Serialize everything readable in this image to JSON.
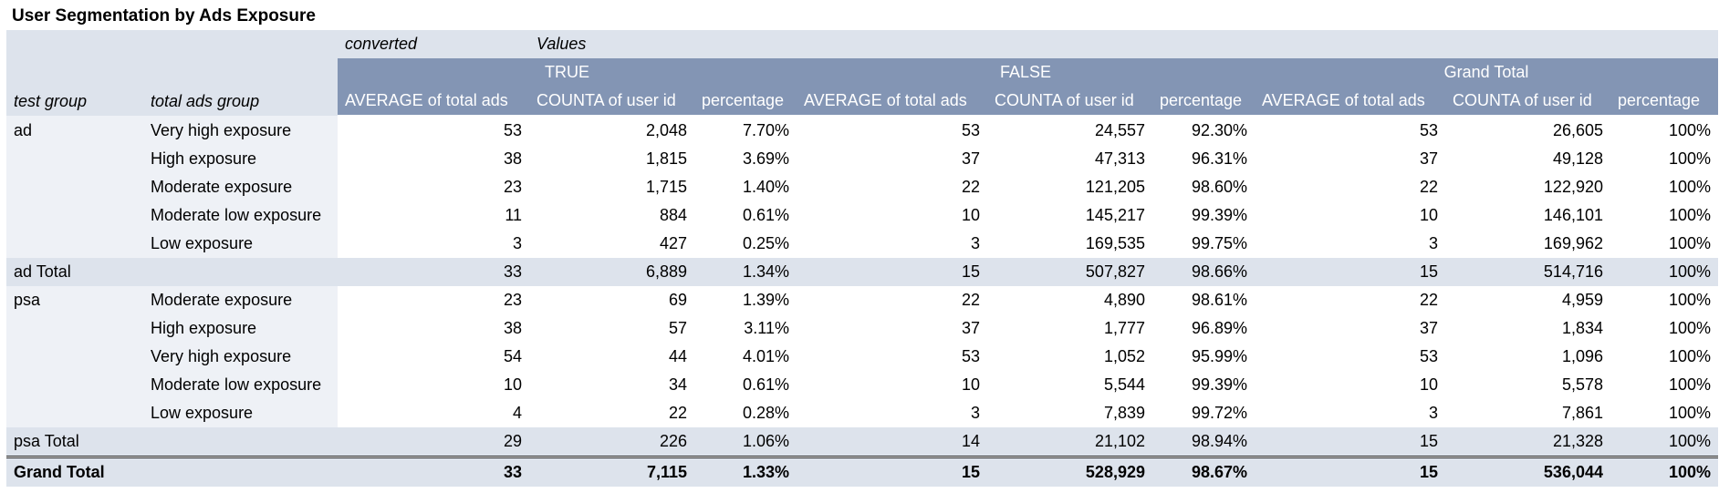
{
  "title": "User Segmentation by Ads Exposure",
  "pivot": {
    "col_field": "converted",
    "values_label": "Values",
    "row_fields": [
      "test group",
      "total ads group"
    ],
    "col_groups": [
      "TRUE",
      "FALSE",
      "Grand Total"
    ],
    "measures": [
      "AVERAGE of total ads",
      "COUNTA of user id",
      "percentage"
    ],
    "groups": [
      {
        "name": "ad",
        "rows": [
          {
            "label": "Very high exposure",
            "values": [
              "53",
              "2,048",
              "7.70%",
              "53",
              "24,557",
              "92.30%",
              "53",
              "26,605",
              "100%"
            ]
          },
          {
            "label": "High exposure",
            "values": [
              "38",
              "1,815",
              "3.69%",
              "37",
              "47,313",
              "96.31%",
              "37",
              "49,128",
              "100%"
            ]
          },
          {
            "label": "Moderate exposure",
            "values": [
              "23",
              "1,715",
              "1.40%",
              "22",
              "121,205",
              "98.60%",
              "22",
              "122,920",
              "100%"
            ]
          },
          {
            "label": "Moderate low exposure",
            "values": [
              "11",
              "884",
              "0.61%",
              "10",
              "145,217",
              "99.39%",
              "10",
              "146,101",
              "100%"
            ]
          },
          {
            "label": "Low exposure",
            "values": [
              "3",
              "427",
              "0.25%",
              "3",
              "169,535",
              "99.75%",
              "3",
              "169,962",
              "100%"
            ]
          }
        ],
        "total_label": "ad Total",
        "total_values": [
          "33",
          "6,889",
          "1.34%",
          "15",
          "507,827",
          "98.66%",
          "15",
          "514,716",
          "100%"
        ]
      },
      {
        "name": "psa",
        "rows": [
          {
            "label": "Moderate exposure",
            "values": [
              "23",
              "69",
              "1.39%",
              "22",
              "4,890",
              "98.61%",
              "22",
              "4,959",
              "100%"
            ]
          },
          {
            "label": "High exposure",
            "values": [
              "38",
              "57",
              "3.11%",
              "37",
              "1,777",
              "96.89%",
              "37",
              "1,834",
              "100%"
            ]
          },
          {
            "label": "Very high exposure",
            "values": [
              "54",
              "44",
              "4.01%",
              "53",
              "1,052",
              "95.99%",
              "53",
              "1,096",
              "100%"
            ]
          },
          {
            "label": "Moderate low exposure",
            "values": [
              "10",
              "34",
              "0.61%",
              "10",
              "5,544",
              "99.39%",
              "10",
              "5,578",
              "100%"
            ]
          },
          {
            "label": "Low exposure",
            "values": [
              "4",
              "22",
              "0.28%",
              "3",
              "7,839",
              "99.72%",
              "3",
              "7,861",
              "100%"
            ]
          }
        ],
        "total_label": "psa Total",
        "total_values": [
          "29",
          "226",
          "1.06%",
          "14",
          "21,102",
          "98.94%",
          "15",
          "21,328",
          "100%"
        ]
      }
    ],
    "grand_total_label": "Grand Total",
    "grand_total_values": [
      "33",
      "7,115",
      "1.33%",
      "15",
      "528,929",
      "98.67%",
      "15",
      "536,044",
      "100%"
    ]
  },
  "colors": {
    "header_dark": "#8395b4",
    "header_light": "#dde3ec",
    "row_label_bg": "#eef1f6"
  }
}
